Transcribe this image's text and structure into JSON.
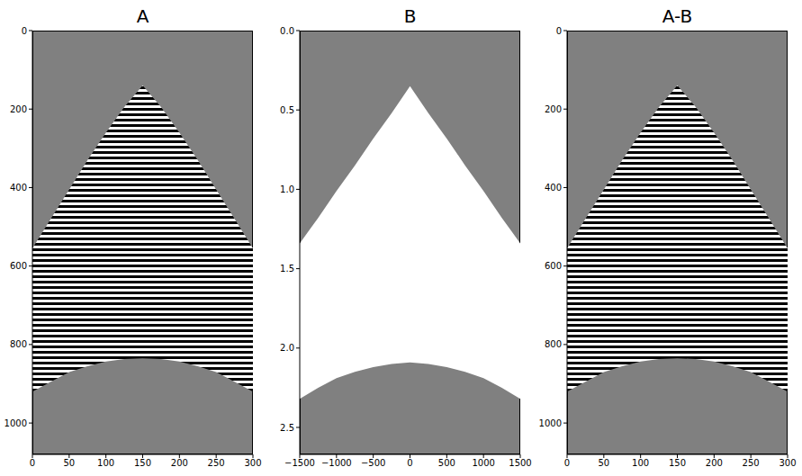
{
  "chart_data": [
    {
      "type": "area",
      "title": "A",
      "x": [
        0,
        25,
        50,
        75,
        100,
        125,
        150,
        175,
        200,
        225,
        250,
        275,
        300
      ],
      "top": [
        555,
        480,
        405,
        330,
        260,
        195,
        140,
        195,
        260,
        330,
        405,
        480,
        555
      ],
      "bottom": [
        920,
        895,
        870,
        855,
        843,
        837,
        835,
        837,
        843,
        855,
        870,
        895,
        920
      ],
      "xlim": [
        0,
        300
      ],
      "xticks": [
        0,
        50,
        100,
        150,
        200,
        250,
        300
      ],
      "ylim": [
        0,
        1080
      ],
      "yticks": [
        0,
        200,
        400,
        600,
        800,
        1000
      ]
    },
    {
      "type": "area",
      "title": "B",
      "color": "#ffffff",
      "x": [
        -1500,
        -1250,
        -1000,
        -750,
        -500,
        -250,
        0,
        250,
        500,
        750,
        1000,
        1250,
        1500
      ],
      "top": [
        1.34,
        1.18,
        1.01,
        0.85,
        0.68,
        0.52,
        0.35,
        0.52,
        0.68,
        0.85,
        1.01,
        1.18,
        1.34
      ],
      "bottom": [
        2.32,
        2.25,
        2.19,
        2.15,
        2.12,
        2.1,
        2.09,
        2.1,
        2.12,
        2.15,
        2.19,
        2.25,
        2.32
      ],
      "xlim": [
        -1500,
        1500
      ],
      "xticks": [
        {
          "value": -1500,
          "label": "−1500"
        },
        {
          "value": -1000,
          "label": "−1000"
        },
        {
          "value": -500,
          "label": "−500"
        },
        0,
        500,
        1000,
        1500
      ],
      "ylim": [
        0,
        2.67
      ],
      "yticks": [
        {
          "value": 0,
          "label": "0.0"
        },
        0.5,
        {
          "value": 1,
          "label": "1.0"
        },
        1.5,
        {
          "value": 2,
          "label": "2.0"
        },
        2.5
      ]
    },
    {
      "type": "area",
      "title": "A-B",
      "x": [
        0,
        25,
        50,
        75,
        100,
        125,
        150,
        175,
        200,
        225,
        250,
        275,
        300
      ],
      "top": [
        555,
        480,
        405,
        330,
        260,
        195,
        140,
        195,
        260,
        330,
        405,
        480,
        555
      ],
      "bottom": [
        920,
        895,
        870,
        855,
        843,
        837,
        835,
        837,
        843,
        855,
        870,
        895,
        920
      ],
      "xlim": [
        0,
        300
      ],
      "xticks": [
        0,
        50,
        100,
        150,
        200,
        250,
        300
      ],
      "ylim": [
        0,
        1080
      ],
      "yticks": [
        0,
        200,
        400,
        600,
        800,
        1000
      ]
    }
  ]
}
